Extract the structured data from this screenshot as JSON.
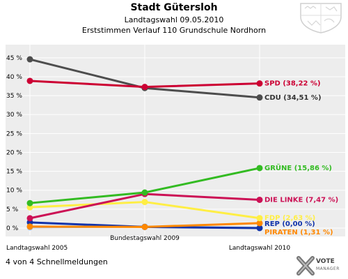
{
  "header": {
    "title": "Stadt Gütersloh",
    "subtitle": "Landtagswahl 09.05.2010",
    "subtitle2": "Erststimmen Verlauf 110 Grundschule Nordhorn"
  },
  "footer": {
    "status": "4 von 4 Schnellmeldungen"
  },
  "logo": {
    "line1": "VOTE",
    "line2": "MANAGER"
  },
  "chart_data": {
    "type": "line",
    "title": "Stadt Gütersloh",
    "categories": [
      "Landtagswahl 2005",
      "Bundestagswahl 2009",
      "Landtagswahl 2010"
    ],
    "ylim": [
      0,
      47
    ],
    "yticks": [
      0,
      5,
      10,
      15,
      20,
      25,
      30,
      35,
      40,
      45
    ],
    "ytick_labels": [
      "0 %",
      "5 %",
      "10 %",
      "15 %",
      "20 %",
      "25 %",
      "30 %",
      "35 %",
      "40 %",
      "45 %"
    ],
    "grid": true,
    "series": [
      {
        "name": "SPD",
        "label": "SPD (38,22 %)",
        "color": "#cc0033",
        "values": [
          38.9,
          37.3,
          38.22
        ]
      },
      {
        "name": "CDU",
        "label": "CDU (34,51 %)",
        "color": "#4d4d4d",
        "values": [
          44.6,
          37.0,
          34.51
        ]
      },
      {
        "name": "GRÜNE",
        "label": "GRÜNE (15,86 %)",
        "color": "#33bb22",
        "values": [
          6.6,
          9.4,
          15.86
        ]
      },
      {
        "name": "DIE LINKE",
        "label": "DIE LINKE (7,47 %)",
        "color": "#cc1155",
        "values": [
          2.6,
          9.0,
          7.47
        ]
      },
      {
        "name": "FDP",
        "label": "FDP (2,63 %)",
        "color": "#ffee44",
        "values": [
          5.5,
          6.9,
          2.63
        ]
      },
      {
        "name": "PIRATEN",
        "label": "PIRATEN (1,31 %)",
        "color": "#ff8800",
        "values": [
          0.4,
          0.3,
          1.31
        ]
      },
      {
        "name": "REP",
        "label": "REP (0,00 %)",
        "color": "#1133aa",
        "values": [
          1.5,
          0.3,
          0.0
        ]
      },
      {
        "name": "Sonstige",
        "label": "",
        "color": "#aac4e8",
        "values": [
          0.2,
          0.4,
          0.1
        ]
      }
    ]
  }
}
